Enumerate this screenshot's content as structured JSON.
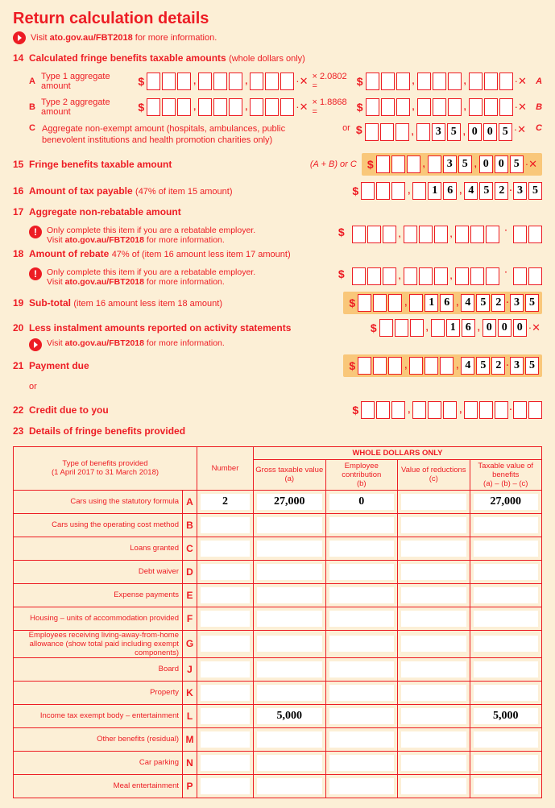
{
  "title": "Return calculation details",
  "visit_text": "Visit ",
  "visit_link": "ato.gov.au/FBT2018",
  "visit_suffix": " for more information.",
  "item14": {
    "num": "14",
    "label": "Calculated fringe benefits taxable amounts",
    "label_suffix": "(whole dollars only)",
    "a_label": "Type 1 aggregate amount",
    "a_mult": "× 2.0802 =",
    "b_label": "Type 2 aggregate amount",
    "b_mult": "× 1.8868 =",
    "c_label": "Aggregate non-exempt amount (hospitals, ambulances, public benevolent institutions and health promotion charities only)",
    "c_or": "or",
    "c_value": [
      "",
      "",
      "",
      "",
      "3",
      "5",
      "0",
      "0",
      "5"
    ]
  },
  "item15": {
    "num": "15",
    "label": "Fringe benefits taxable amount",
    "suffix": "(A + B) or C",
    "value": [
      "",
      "",
      "",
      "",
      "3",
      "5",
      "0",
      "0",
      "5"
    ]
  },
  "item16": {
    "num": "16",
    "label": "Amount of tax payable",
    "suffix": "(47% of item 15 amount)",
    "value": [
      "",
      "",
      "",
      "",
      "1",
      "6",
      "4",
      "5",
      "2"
    ],
    "cents": [
      "3",
      "5"
    ]
  },
  "item17": {
    "num": "17",
    "label": "Aggregate non-rebatable amount",
    "info": "Only complete this item if you are a rebatable employer."
  },
  "item18": {
    "num": "18",
    "label": "Amount of rebate",
    "suffix": "47% of (item 16 amount less item 17 amount)",
    "info": "Only complete this item if you are a rebatable employer."
  },
  "item19": {
    "num": "19",
    "label": "Sub-total",
    "suffix": "(item 16 amount less item 18 amount)",
    "value": [
      "",
      "",
      "",
      "",
      "1",
      "6",
      "4",
      "5",
      "2"
    ],
    "cents": [
      "3",
      "5"
    ]
  },
  "item20": {
    "num": "20",
    "label": "Less instalment amounts reported on activity statements",
    "value": [
      "",
      "",
      "",
      "",
      "1",
      "6",
      "0",
      "0",
      "0"
    ]
  },
  "item21": {
    "num": "21",
    "label": "Payment due",
    "or": "or",
    "value": [
      "",
      "",
      "",
      "",
      "",
      "",
      "4",
      "5",
      "2"
    ],
    "cents": [
      "3",
      "5"
    ]
  },
  "item22": {
    "num": "22",
    "label": "Credit due to you"
  },
  "item23": {
    "num": "23",
    "label": "Details of fringe benefits provided",
    "header_type": "Type of benefits provided\n(1 April 2017 to 31 March 2018)",
    "header_whole": "WHOLE DOLLARS ONLY",
    "header_number": "Number",
    "header_gross": "Gross taxable value\n(a)",
    "header_emp": "Employee contribution\n(b)",
    "header_reduct": "Value of reductions\n(c)",
    "header_taxable": "Taxable value of benefits\n(a) – (b) – (c)",
    "rows": [
      {
        "type": "Cars using the statutory formula",
        "letter": "A",
        "number": "2",
        "gross": "27,000",
        "emp": "0",
        "reduct": "",
        "taxable": "27,000"
      },
      {
        "type": "Cars using the operating cost method",
        "letter": "B"
      },
      {
        "type": "Loans granted",
        "letter": "C"
      },
      {
        "type": "Debt waiver",
        "letter": "D"
      },
      {
        "type": "Expense payments",
        "letter": "E"
      },
      {
        "type": "Housing – units of accommodation provided",
        "letter": "F"
      },
      {
        "type": "Employees receiving living-away-from-home allowance (show total paid including exempt components)",
        "letter": "G"
      },
      {
        "type": "Board",
        "letter": "J"
      },
      {
        "type": "Property",
        "letter": "K"
      },
      {
        "type": "Income tax exempt body – entertainment",
        "letter": "L",
        "number": "",
        "gross": "5,000",
        "emp": "",
        "reduct": "",
        "taxable": "5,000"
      },
      {
        "type": "Other benefits (residual)",
        "letter": "M"
      },
      {
        "type": "Car parking",
        "letter": "N"
      },
      {
        "type": "Meal entertainment",
        "letter": "P"
      }
    ]
  }
}
